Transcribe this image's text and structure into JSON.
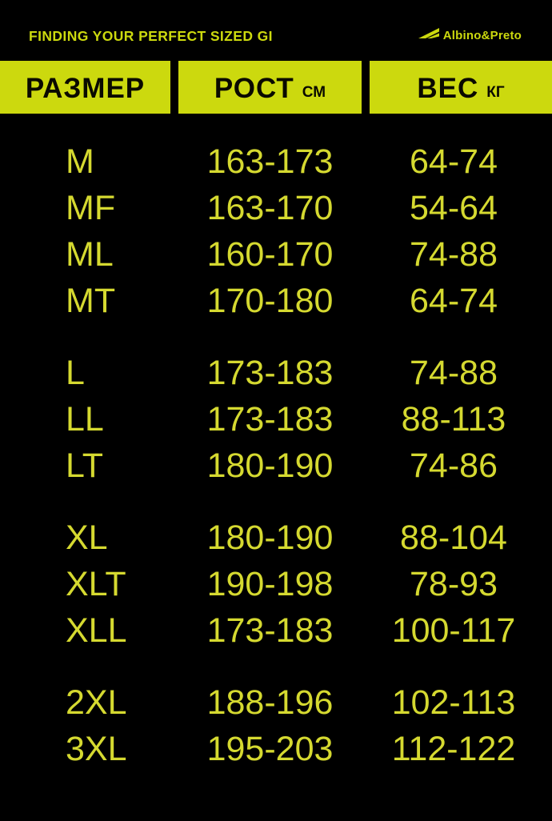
{
  "header": {
    "title": "FINDING YOUR PERFECT SIZED GI",
    "brand": "Albino&Preto"
  },
  "chart_data": {
    "type": "table",
    "title": "FINDING YOUR PERFECT SIZED GI",
    "columns": [
      {
        "label": "РАЗМЕР",
        "unit": ""
      },
      {
        "label": "РОСТ",
        "unit": "СМ"
      },
      {
        "label": "ВЕС",
        "unit": "КГ"
      }
    ],
    "column_meanings": [
      "size",
      "height_cm_range",
      "weight_kg_range"
    ],
    "groups": [
      {
        "rows": [
          [
            "M",
            "163-173",
            "64-74"
          ],
          [
            "MF",
            "163-170",
            "54-64"
          ],
          [
            "ML",
            "160-170",
            "74-88"
          ],
          [
            "MT",
            "170-180",
            "64-74"
          ]
        ]
      },
      {
        "rows": [
          [
            "L",
            "173-183",
            "74-88"
          ],
          [
            "LL",
            "173-183",
            "88-113"
          ],
          [
            "LT",
            "180-190",
            "74-86"
          ]
        ]
      },
      {
        "rows": [
          [
            "XL",
            "180-190",
            "88-104"
          ],
          [
            "XLT",
            "190-198",
            "78-93"
          ],
          [
            "XLL",
            "173-183",
            "100-117"
          ]
        ]
      },
      {
        "rows": [
          [
            "2XL",
            "188-196",
            "102-113"
          ],
          [
            "3XL",
            "195-203",
            "112-122"
          ]
        ]
      }
    ]
  },
  "colors": {
    "background": "#000000",
    "accent": "#ccd90e",
    "row_text": "#d5d930",
    "text_on_accent": "#0a0a00"
  }
}
